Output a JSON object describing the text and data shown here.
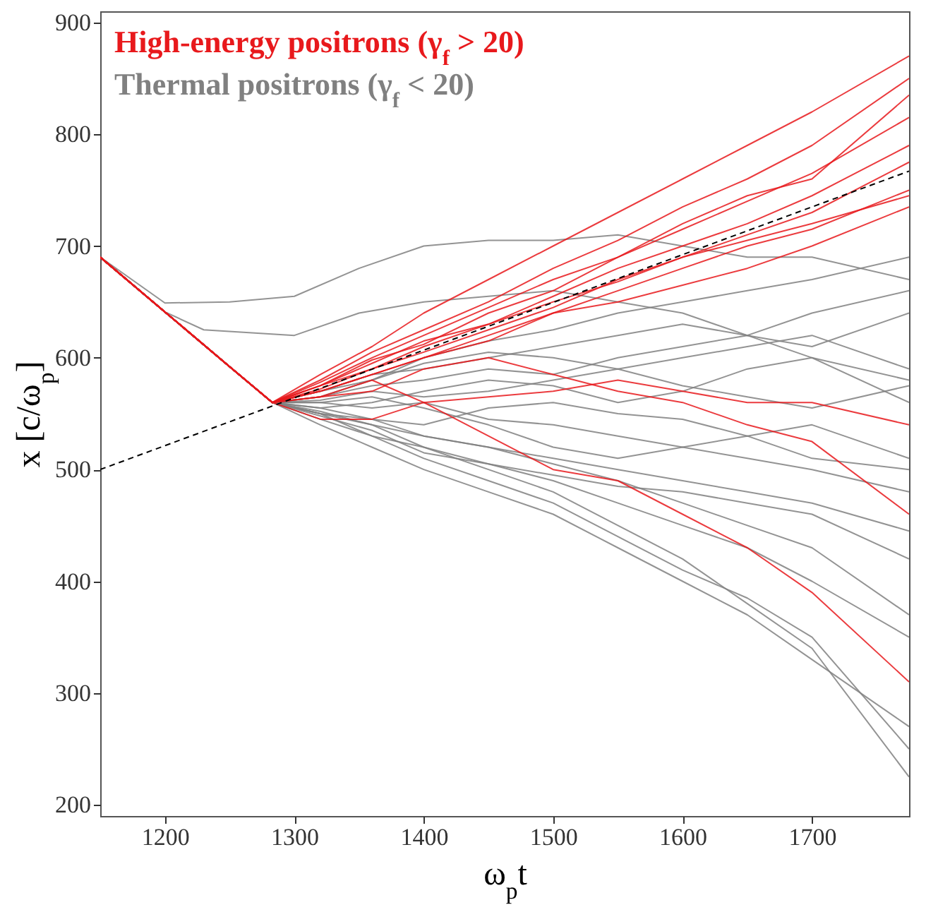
{
  "chart_data": {
    "type": "line",
    "xlabel": "ω$_{p}$t",
    "ylabel": "x [c/ω$_{p}$]",
    "xlim": [
      1150,
      1775
    ],
    "ylim": [
      190,
      910
    ],
    "xticks": [
      1200,
      1300,
      1400,
      1500,
      1600,
      1700
    ],
    "yticks": [
      200,
      300,
      400,
      500,
      600,
      700,
      800,
      900
    ],
    "grid": false,
    "legend": "top left",
    "marker": "none",
    "x": [
      1150,
      1200,
      1250,
      1283,
      1320,
      1360,
      1400,
      1450,
      1500,
      1550,
      1600,
      1650,
      1700,
      1775
    ],
    "series": [
      {
        "name": "Thermal positrons (γ$_{f}$ < 20)",
        "color": "#808080",
        "values": [
          690,
          641,
          592,
          560,
          550,
          540,
          520,
          500,
          480,
          450,
          420,
          380,
          340,
          225
        ]
      },
      {
        "color": "#808080",
        "values": [
          690,
          641,
          592,
          560,
          545,
          530,
          510,
          490,
          470,
          440,
          410,
          385,
          350,
          250
        ]
      },
      {
        "color": "#808080",
        "values": [
          690,
          641,
          592,
          560,
          555,
          545,
          530,
          520,
          505,
          490,
          470,
          450,
          430,
          370
        ]
      },
      {
        "color": "#808080",
        "values": [
          690,
          641,
          592,
          560,
          560,
          555,
          560,
          545,
          540,
          530,
          520,
          510,
          500,
          480
        ]
      },
      {
        "color": "#808080",
        "values": [
          690,
          641,
          592,
          560,
          565,
          575,
          580,
          590,
          585,
          600,
          610,
          620,
          610,
          640
        ]
      },
      {
        "color": "#808080",
        "values": [
          690,
          641,
          592,
          560,
          570,
          580,
          600,
          615,
          625,
          640,
          650,
          660,
          670,
          690
        ]
      },
      {
        "color": "#808080",
        "values": [
          690,
          641,
          592,
          560,
          550,
          545,
          540,
          555,
          560,
          550,
          545,
          530,
          540,
          510
        ]
      },
      {
        "color": "#808080",
        "values": [
          690,
          641,
          592,
          560,
          555,
          560,
          570,
          580,
          575,
          560,
          570,
          590,
          600,
          560
        ]
      },
      {
        "color": "#808080",
        "values": [
          690,
          641,
          592,
          560,
          540,
          520,
          500,
          480,
          460,
          430,
          400,
          370,
          330,
          270
        ]
      },
      {
        "color": "#808080",
        "values": [
          690,
          641,
          592,
          560,
          560,
          565,
          555,
          540,
          520,
          510,
          520,
          530,
          510,
          500
        ]
      },
      {
        "color": "#808080",
        "values": [
          690,
          641,
          592,
          560,
          570,
          585,
          590,
          600,
          610,
          620,
          630,
          620,
          640,
          660
        ]
      },
      {
        "color": "#808080",
        "values": [
          690,
          641,
          592,
          560,
          548,
          535,
          515,
          505,
          495,
          485,
          480,
          470,
          460,
          420
        ]
      },
      {
        "color": "#808080",
        "values": [
          690,
          641,
          592,
          560,
          562,
          570,
          565,
          570,
          580,
          590,
          575,
          565,
          555,
          575
        ]
      },
      {
        "color": "#808080",
        "values": [
          690,
          641,
          592,
          560,
          552,
          540,
          530,
          520,
          510,
          500,
          490,
          480,
          470,
          445
        ]
      },
      {
        "color": "#808080",
        "values": [
          690,
          641,
          592,
          560,
          565,
          580,
          595,
          605,
          600,
          590,
          600,
          610,
          620,
          590
        ]
      },
      {
        "color": "#808080",
        "values": [
          690,
          641,
          592,
          560,
          550,
          530,
          520,
          505,
          490,
          470,
          450,
          430,
          400,
          350
        ]
      },
      {
        "color": "#808080",
        "x": [
          1150,
          1200,
          1250,
          1300,
          1350,
          1400,
          1450,
          1500,
          1550,
          1600,
          1650,
          1700,
          1775
        ],
        "values": [
          690,
          649,
          650,
          655,
          680,
          700,
          705,
          705,
          710,
          700,
          690,
          690,
          670
        ]
      },
      {
        "color": "#808080",
        "x": [
          1150,
          1200,
          1230,
          1300,
          1350,
          1400,
          1450,
          1500,
          1550,
          1600,
          1650,
          1700,
          1775
        ],
        "values": [
          690,
          641,
          625,
          620,
          640,
          650,
          655,
          660,
          650,
          640,
          620,
          600,
          580
        ]
      },
      {
        "name": "High-energy positrons (γ$_{f}$ > 20)",
        "color": "#e8191c",
        "values": [
          690,
          641,
          592,
          560,
          585,
          610,
          640,
          670,
          700,
          730,
          760,
          790,
          820,
          870
        ]
      },
      {
        "color": "#e8191c",
        "values": [
          690,
          641,
          592,
          560,
          580,
          605,
          625,
          650,
          680,
          705,
          735,
          760,
          790,
          850
        ]
      },
      {
        "color": "#e8191c",
        "values": [
          690,
          641,
          592,
          560,
          578,
          600,
          620,
          645,
          670,
          690,
          715,
          740,
          765,
          815
        ]
      },
      {
        "color": "#e8191c",
        "values": [
          690,
          641,
          592,
          560,
          575,
          595,
          615,
          630,
          655,
          680,
          700,
          720,
          745,
          790
        ]
      },
      {
        "color": "#e8191c",
        "values": [
          690,
          641,
          592,
          560,
          572,
          590,
          605,
          625,
          645,
          670,
          690,
          710,
          730,
          775
        ]
      },
      {
        "color": "#e8191c",
        "values": [
          690,
          641,
          592,
          560,
          575,
          598,
          612,
          640,
          660,
          690,
          720,
          745,
          760,
          835
        ]
      },
      {
        "color": "#e8191c",
        "values": [
          690,
          641,
          592,
          560,
          570,
          585,
          600,
          615,
          640,
          660,
          680,
          700,
          715,
          750
        ]
      },
      {
        "color": "#e8191c",
        "values": [
          690,
          641,
          592,
          560,
          575,
          590,
          610,
          630,
          650,
          668,
          690,
          705,
          720,
          745
        ]
      },
      {
        "color": "#e8191c",
        "values": [
          690,
          641,
          592,
          560,
          570,
          585,
          600,
          620,
          640,
          650,
          665,
          680,
          700,
          735
        ]
      },
      {
        "color": "#e8191c",
        "values": [
          690,
          641,
          592,
          560,
          565,
          580,
          560,
          530,
          500,
          490,
          460,
          430,
          390,
          310
        ]
      },
      {
        "color": "#e8191c",
        "values": [
          690,
          641,
          592,
          560,
          545,
          545,
          560,
          565,
          570,
          580,
          570,
          560,
          560,
          540
        ]
      },
      {
        "color": "#e8191c",
        "values": [
          690,
          641,
          592,
          560,
          565,
          570,
          590,
          600,
          585,
          570,
          560,
          540,
          525,
          460
        ]
      },
      {
        "color": "#000000",
        "line_style": "dashed",
        "x": [
          1150,
          1775
        ],
        "values": [
          500,
          767
        ]
      }
    ]
  }
}
